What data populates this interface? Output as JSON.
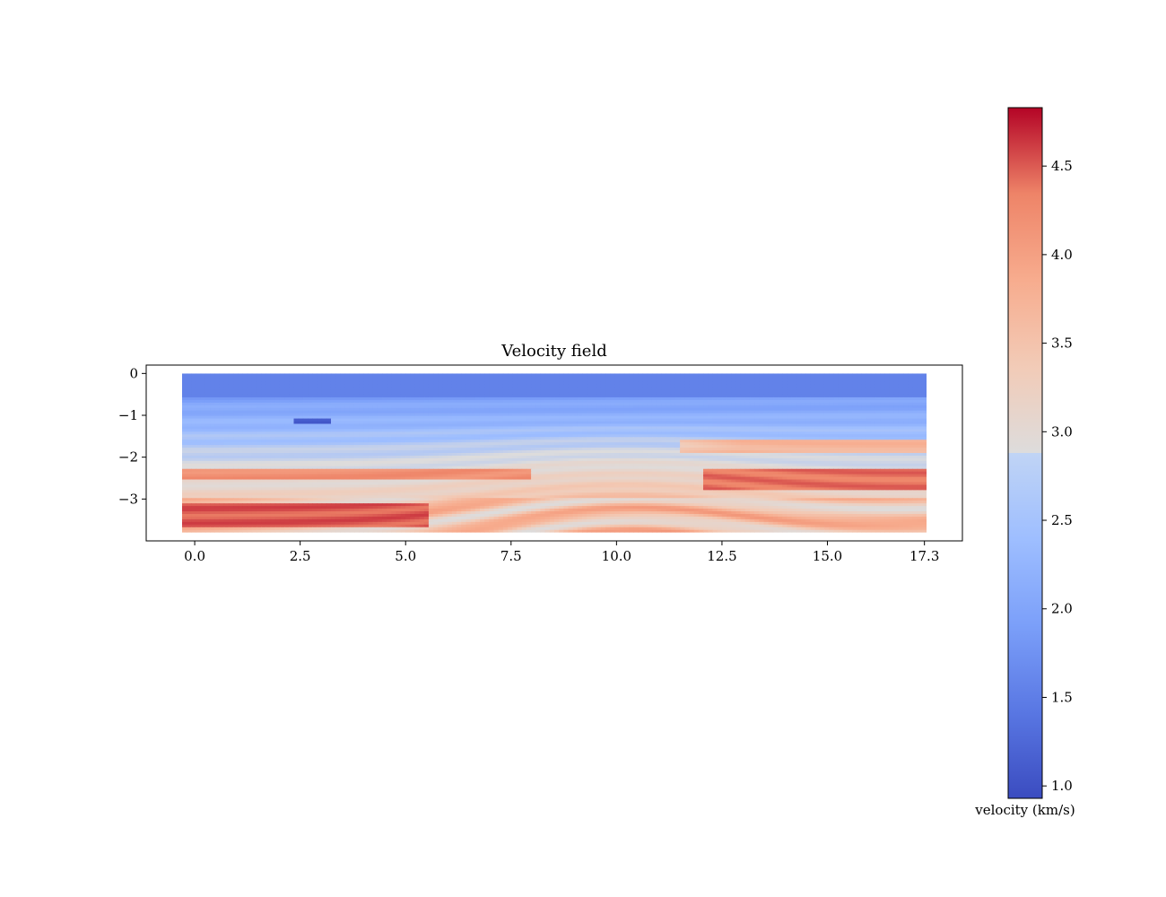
{
  "chart_data": {
    "type": "heatmap",
    "title": "Velocity field",
    "xlabel": "",
    "ylabel": "",
    "x_ticks": [
      0.0,
      2.5,
      5.0,
      7.5,
      10.0,
      12.5,
      15.0,
      17.3
    ],
    "x_tick_labels": [
      "0.0",
      "2.5",
      "5.0",
      "7.5",
      "10.0",
      "12.5",
      "15.0",
      "17.3"
    ],
    "y_ticks": [
      0,
      -1,
      -2,
      -3
    ],
    "y_tick_labels": [
      "0",
      "−1",
      "−2",
      "−3"
    ],
    "xlim": [
      -1.15,
      18.2
    ],
    "ylim": [
      -4.0,
      0.2
    ],
    "data_extent": {
      "x": [
        -0.3,
        17.35
      ],
      "y": [
        -3.8,
        0.0
      ]
    },
    "colormap": "coolwarm",
    "colorbar": {
      "label": "velocity (km/s)",
      "range": [
        0.93,
        4.83
      ],
      "ticks": [
        1.0,
        1.5,
        2.0,
        2.5,
        3.0,
        3.5,
        4.0,
        4.5
      ],
      "tick_labels": [
        "1.0",
        "1.5",
        "2.0",
        "2.5",
        "3.0",
        "3.5",
        "4.0",
        "4.5"
      ]
    },
    "field_description": "layered subsurface velocity model: slow water layer near surface, increasing with depth, faulted anticline near x=10"
  }
}
